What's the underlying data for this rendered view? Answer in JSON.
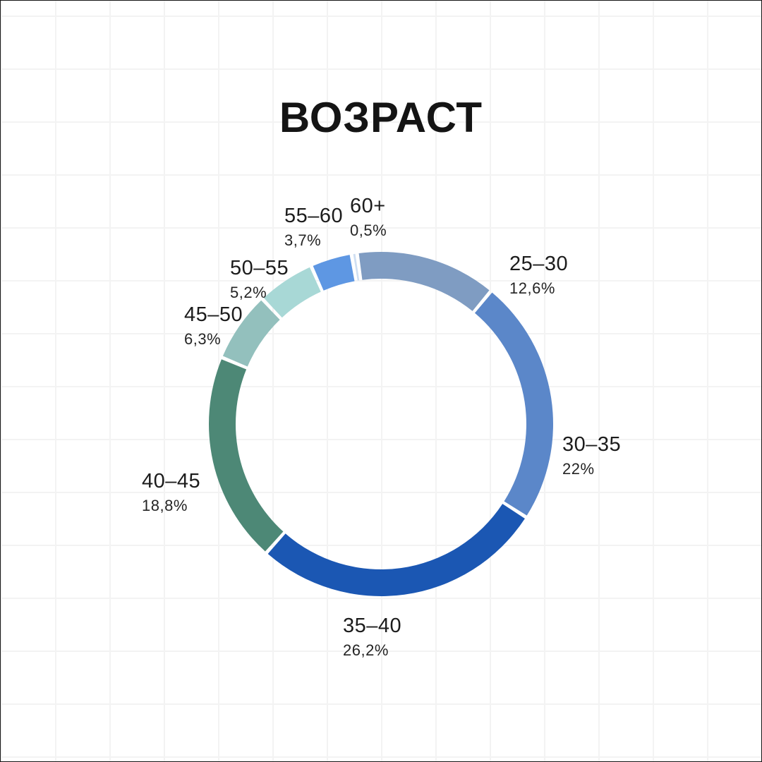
{
  "title": "ВОЗРАСТ",
  "chart_data": {
    "type": "pie",
    "subtype": "donut",
    "title": "ВОЗРАСТ",
    "unit": "%",
    "categories": [
      "25–30",
      "30–35",
      "35–40",
      "40–45",
      "45–50",
      "50–55",
      "55–60",
      "60+"
    ],
    "values": [
      12.6,
      22,
      26.2,
      18.8,
      6.3,
      5.2,
      3.7,
      0.5
    ],
    "value_labels": [
      "12,6%",
      "22%",
      "26,2%",
      "18,8%",
      "6,3%",
      "5,2%",
      "3,7%",
      "0,5%"
    ],
    "colors": [
      "#7f9cc2",
      "#5b87c9",
      "#1b57b3",
      "#4d8876",
      "#93c0bd",
      "#a8d8d6",
      "#5e97e3",
      "#cfdff2"
    ],
    "start_angle_deg": -8,
    "direction": "clockwise",
    "legend_position": "outside-labels",
    "grid": false,
    "background_color": "#ffffff",
    "title_color": "#141414"
  }
}
